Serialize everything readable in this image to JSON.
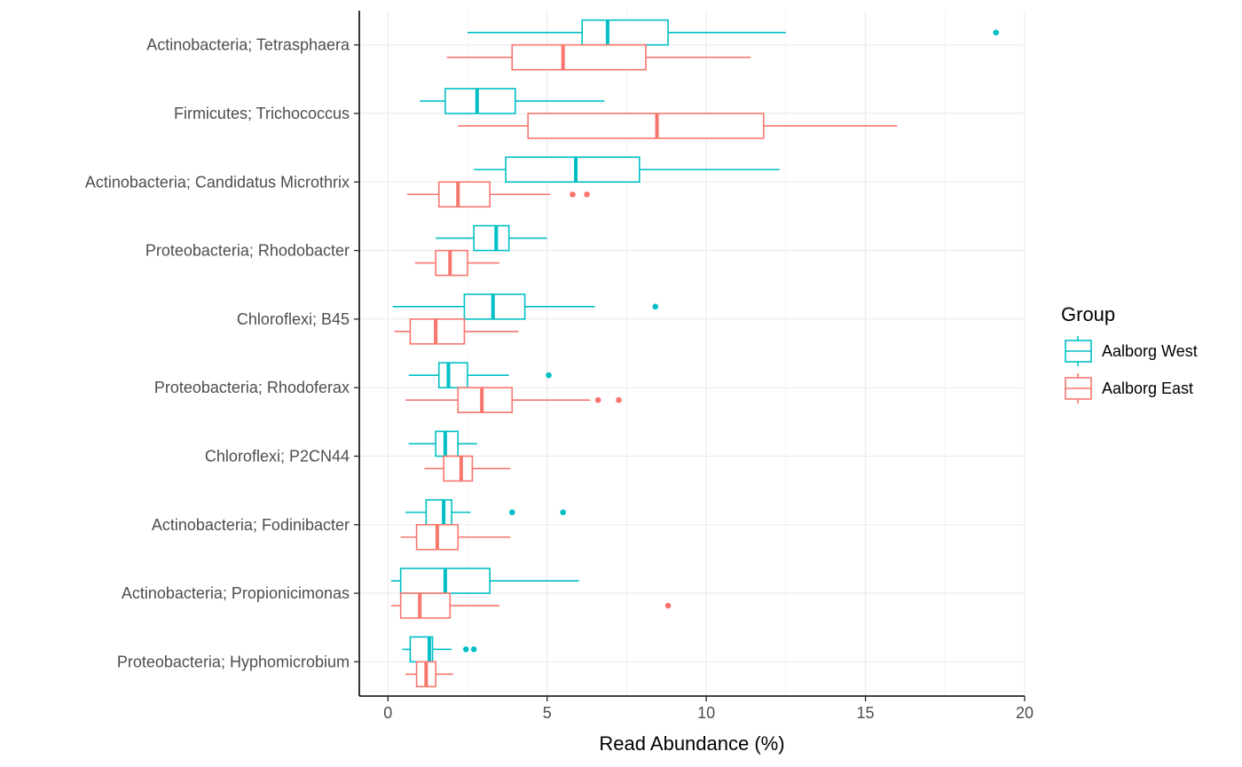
{
  "chart_data": {
    "type": "boxplot",
    "orientation": "horizontal",
    "xlabel": "Read Abundance (%)",
    "xlim": [
      -0.9,
      20
    ],
    "xticks": [
      0,
      5,
      10,
      15,
      20
    ],
    "grid": true,
    "legend": {
      "title": "Group",
      "position": "right",
      "entries": [
        "Aalborg West",
        "Aalborg East"
      ]
    },
    "colors": {
      "Aalborg West": "#00BFC4",
      "Aalborg East": "#F8766D"
    },
    "categories": [
      "Actinobacteria; Tetrasphaera",
      "Firmicutes; Trichococcus",
      "Actinobacteria; Candidatus Microthrix",
      "Proteobacteria; Rhodobacter",
      "Chloroflexi; B45",
      "Proteobacteria; Rhodoferax",
      "Chloroflexi; P2CN44",
      "Actinobacteria; Fodinibacter",
      "Actinobacteria; Propionicimonas",
      "Proteobacteria; Hyphomicrobium"
    ],
    "series": [
      {
        "name": "Aalborg West",
        "boxes": [
          {
            "min": 2.5,
            "q1": 6.1,
            "median": 6.9,
            "q3": 8.8,
            "max": 12.5,
            "outliers": [
              19.1
            ]
          },
          {
            "min": 1.0,
            "q1": 1.8,
            "median": 2.8,
            "q3": 4.0,
            "max": 6.8,
            "outliers": []
          },
          {
            "min": 2.7,
            "q1": 3.7,
            "median": 5.9,
            "q3": 7.9,
            "max": 12.3,
            "outliers": []
          },
          {
            "min": 1.5,
            "q1": 2.7,
            "median": 3.4,
            "q3": 3.8,
            "max": 5.0,
            "outliers": []
          },
          {
            "min": 0.15,
            "q1": 2.4,
            "median": 3.3,
            "q3": 4.3,
            "max": 6.5,
            "outliers": [
              8.4
            ]
          },
          {
            "min": 0.65,
            "q1": 1.6,
            "median": 1.9,
            "q3": 2.5,
            "max": 3.8,
            "outliers": [
              5.05
            ]
          },
          {
            "min": 0.65,
            "q1": 1.5,
            "median": 1.8,
            "q3": 2.2,
            "max": 2.8,
            "outliers": []
          },
          {
            "min": 0.55,
            "q1": 1.2,
            "median": 1.75,
            "q3": 2.0,
            "max": 2.6,
            "outliers": [
              3.9,
              5.5
            ]
          },
          {
            "min": 0.1,
            "q1": 0.4,
            "median": 1.8,
            "q3": 3.2,
            "max": 6.0,
            "outliers": []
          },
          {
            "min": 0.45,
            "q1": 0.7,
            "median": 1.3,
            "q3": 1.4,
            "max": 2.0,
            "outliers": [
              2.45,
              2.7
            ]
          }
        ]
      },
      {
        "name": "Aalborg East",
        "boxes": [
          {
            "min": 1.85,
            "q1": 3.9,
            "median": 5.5,
            "q3": 8.1,
            "max": 11.4,
            "outliers": []
          },
          {
            "min": 2.2,
            "q1": 4.4,
            "median": 8.45,
            "q3": 11.8,
            "max": 16.0,
            "outliers": []
          },
          {
            "min": 0.6,
            "q1": 1.6,
            "median": 2.2,
            "q3": 3.2,
            "max": 5.1,
            "outliers": [
              5.8,
              6.25
            ]
          },
          {
            "min": 0.85,
            "q1": 1.5,
            "median": 1.95,
            "q3": 2.5,
            "max": 3.5,
            "outliers": []
          },
          {
            "min": 0.2,
            "q1": 0.7,
            "median": 1.5,
            "q3": 2.4,
            "max": 4.1,
            "outliers": []
          },
          {
            "min": 0.55,
            "q1": 2.2,
            "median": 2.95,
            "q3": 3.9,
            "max": 6.35,
            "outliers": [
              6.6,
              7.25
            ]
          },
          {
            "min": 1.15,
            "q1": 1.75,
            "median": 2.3,
            "q3": 2.65,
            "max": 3.85,
            "outliers": []
          },
          {
            "min": 0.4,
            "q1": 0.9,
            "median": 1.55,
            "q3": 2.2,
            "max": 3.85,
            "outliers": []
          },
          {
            "min": 0.1,
            "q1": 0.4,
            "median": 1.0,
            "q3": 1.95,
            "max": 3.5,
            "outliers": [
              8.8
            ]
          },
          {
            "min": 0.55,
            "q1": 0.9,
            "median": 1.2,
            "q3": 1.5,
            "max": 2.05,
            "outliers": []
          }
        ]
      }
    ]
  }
}
